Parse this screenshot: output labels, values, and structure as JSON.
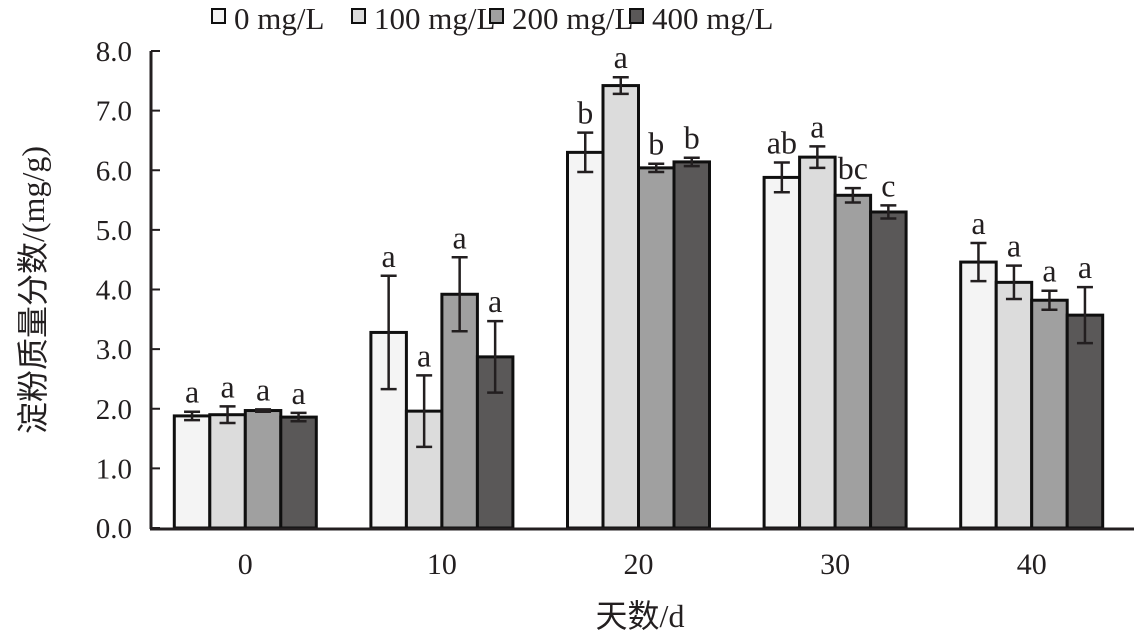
{
  "chart_data": {
    "type": "bar",
    "title": "",
    "xlabel": "天数/d",
    "ylabel": "淀粉质量分数/(mg/g)",
    "ylim": [
      0,
      8
    ],
    "yticks": [
      "0.0",
      "1.0",
      "2.0",
      "3.0",
      "4.0",
      "5.0",
      "6.0",
      "7.0",
      "8.0"
    ],
    "categories": [
      "0",
      "10",
      "20",
      "30",
      "40"
    ],
    "legend_position": "top",
    "series": [
      {
        "name": "0 mg/L",
        "color": "#f4f4f4",
        "values": [
          1.88,
          3.28,
          6.3,
          5.88,
          4.46
        ],
        "errors": [
          0.07,
          0.95,
          0.33,
          0.25,
          0.32
        ],
        "letters": [
          "a",
          "a",
          "b",
          "ab",
          "a"
        ]
      },
      {
        "name": "100 mg/L",
        "color": "#dcdcdc",
        "values": [
          1.9,
          1.96,
          7.42,
          6.22,
          4.12
        ],
        "errors": [
          0.14,
          0.6,
          0.14,
          0.18,
          0.28
        ],
        "letters": [
          "a",
          "a",
          "a",
          "a",
          "a"
        ]
      },
      {
        "name": "200 mg/L",
        "color": "#a0a0a0",
        "values": [
          1.97,
          3.92,
          6.04,
          5.58,
          3.82
        ],
        "errors": [
          0.02,
          0.62,
          0.07,
          0.12,
          0.16
        ],
        "letters": [
          "a",
          "a",
          "b",
          "bc",
          "a"
        ]
      },
      {
        "name": "400 mg/L",
        "color": "#5a5858",
        "values": [
          1.86,
          2.87,
          6.14,
          5.3,
          3.57
        ],
        "errors": [
          0.07,
          0.6,
          0.07,
          0.11,
          0.47
        ],
        "letters": [
          "a",
          "a",
          "b",
          "c",
          "a"
        ]
      }
    ]
  }
}
